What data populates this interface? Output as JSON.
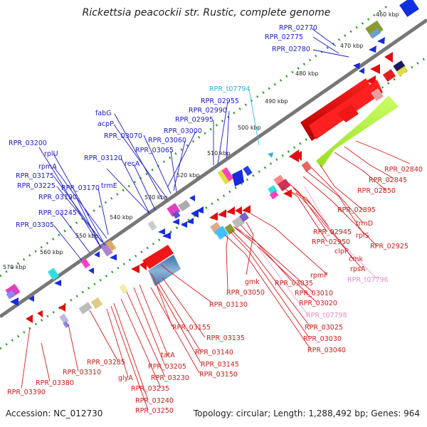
{
  "title": "Rickettsia peacockii str. Rustic, complete genome",
  "accession": "Accession: NC_012730",
  "topology": "Topology: circular; Length: 1,288,492 bp; Genes: 964",
  "ticks": [
    "460 kbp",
    "470 kbp",
    "480 kbp",
    "490 kbp",
    "500 kbp",
    "510 kbp",
    "520 kbp",
    "530 kbp",
    "540 kbp",
    "550 kbp",
    "560 kbp",
    "570 kbp"
  ],
  "labels": [
    "RPR_02770",
    "RPR_02775",
    "RPR_02780",
    "RPR_t07794",
    "RPR_02955",
    "RPR_02990",
    "RPR_02995",
    "fabG",
    "acpP",
    "RPR_03070",
    "RPR_03000",
    "RPR_03060",
    "RPR_03065",
    "RPR_03120",
    "recA",
    "RPR_03200",
    "rplU",
    "rpmA",
    "RPR_03175",
    "RPR_03225",
    "RPR_03170",
    "trmE",
    "RPR_03190",
    "RPR_03245",
    "RPR_03305",
    "RPR_02840",
    "RPR_02845",
    "RPR_02850",
    "RPR_02895",
    "trmD",
    "rplS",
    "RPR_02925",
    "RPR_02945",
    "RPR_02950",
    "clpP",
    "cmk",
    "rpsA",
    "RPR_t07796",
    "rpmF",
    "gmk",
    "RPR_03035",
    "RPR_03010",
    "RPR_03020",
    "RPR_03050",
    "RPR_03130",
    "RPR_t07798",
    "RPR_03025",
    "RPR_03030",
    "RPR_03040",
    "RPR_03155",
    "RPR_03135",
    "RPR_03140",
    "RPR_03145",
    "RPR_03150",
    "tatA",
    "RPR_03205",
    "RPR_03285",
    "glyA",
    "RPR_03230",
    "RPR_03235",
    "RPR_03240",
    "RPR_03250",
    "RPR_03310",
    "RPR_03380",
    "RPR_03390"
  ]
}
